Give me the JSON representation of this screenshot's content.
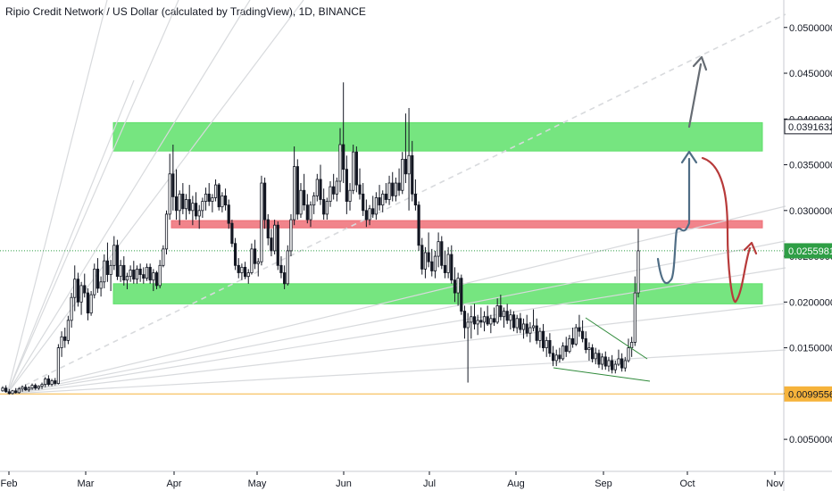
{
  "title": "Ripio Credit Network / US Dollar (calculated by TradingView), 1D, BINANCE",
  "colors": {
    "up": "#131722",
    "zone_green": "#5ee06a",
    "zone_red": "#ef6f77",
    "support_line": "#f6b33b",
    "current_line": "#2e9e45",
    "path_blue": "#4f6d85",
    "path_red": "#b73a3a",
    "path_grey": "#666c73",
    "fan": "#d8dadd",
    "wedge": "#2f8a3a"
  },
  "chart_data": {
    "type": "candlestick",
    "pair": "RCN/USD",
    "interval": "1D",
    "exchange": "BINANCE",
    "x_labels": [
      "Feb",
      "Mar",
      "Apr",
      "May",
      "Jun",
      "Jul",
      "Aug",
      "Sep",
      "Oct",
      "Nov"
    ],
    "y_labels": [
      "0.0500000",
      "0.0450000",
      "0.0400000",
      "0.0350000",
      "0.0300000",
      "0.0250000",
      "0.0200000",
      "0.0150000",
      "0.0100000",
      "0.0050000"
    ],
    "ylim": [
      0.0015,
      0.053
    ],
    "price_tags": [
      {
        "label": "0.0391632",
        "value": 0.0391632,
        "style": "dark"
      },
      {
        "label": "0.0255981",
        "value": 0.0255981,
        "style": "green"
      },
      {
        "label": "0.0099556",
        "value": 0.0099556,
        "style": "orange"
      }
    ],
    "zones": [
      {
        "kind": "resistance",
        "color": "green",
        "from": 0.0365,
        "to": 0.0396,
        "start": "Feb 11",
        "end": "Oct 28"
      },
      {
        "kind": "pivot",
        "color": "red",
        "from": 0.0281,
        "to": 0.0289,
        "start": "Mar 29",
        "end": "Oct 28"
      },
      {
        "kind": "support",
        "color": "green",
        "from": 0.0198,
        "to": 0.022,
        "start": "Feb 11",
        "end": "Oct 28"
      }
    ],
    "support_line": 0.0099556,
    "last_price": 0.0255981,
    "candles": [
      [
        0.0103,
        0.0108,
        0.0102,
        0.0106
      ],
      [
        0.0106,
        0.0109,
        0.0101,
        0.0102
      ],
      [
        0.0102,
        0.0105,
        0.0099,
        0.01
      ],
      [
        0.01,
        0.0104,
        0.0099,
        0.0103
      ],
      [
        0.0103,
        0.0106,
        0.01,
        0.0101
      ],
      [
        0.0101,
        0.0107,
        0.01,
        0.0105
      ],
      [
        0.0105,
        0.0109,
        0.0102,
        0.0107
      ],
      [
        0.0107,
        0.011,
        0.0103,
        0.0104
      ],
      [
        0.0104,
        0.0108,
        0.0102,
        0.0106
      ],
      [
        0.0106,
        0.0111,
        0.0104,
        0.0109
      ],
      [
        0.0109,
        0.0111,
        0.0104,
        0.0106
      ],
      [
        0.0106,
        0.0109,
        0.0104,
        0.0108
      ],
      [
        0.0108,
        0.0112,
        0.0105,
        0.011
      ],
      [
        0.011,
        0.0118,
        0.0107,
        0.0116
      ],
      [
        0.0116,
        0.012,
        0.0108,
        0.011
      ],
      [
        0.011,
        0.0116,
        0.0108,
        0.0114
      ],
      [
        0.0114,
        0.0117,
        0.0109,
        0.0111
      ],
      [
        0.0111,
        0.0154,
        0.011,
        0.015
      ],
      [
        0.015,
        0.0168,
        0.014,
        0.0162
      ],
      [
        0.0162,
        0.0172,
        0.015,
        0.0158
      ],
      [
        0.0158,
        0.0185,
        0.0154,
        0.018
      ],
      [
        0.018,
        0.021,
        0.0172,
        0.0205
      ],
      [
        0.0205,
        0.024,
        0.019,
        0.0225
      ],
      [
        0.0225,
        0.0232,
        0.0195,
        0.02
      ],
      [
        0.02,
        0.0222,
        0.0186,
        0.0218
      ],
      [
        0.0218,
        0.0231,
        0.0205,
        0.021
      ],
      [
        0.021,
        0.0215,
        0.018,
        0.0188
      ],
      [
        0.0188,
        0.0212,
        0.0185,
        0.0208
      ],
      [
        0.0208,
        0.0242,
        0.0204,
        0.0236
      ],
      [
        0.0236,
        0.0248,
        0.021,
        0.0215
      ],
      [
        0.0215,
        0.0228,
        0.0206,
        0.0222
      ],
      [
        0.0222,
        0.0252,
        0.0215,
        0.0245
      ],
      [
        0.0245,
        0.0265,
        0.0222,
        0.023
      ],
      [
        0.023,
        0.0246,
        0.0212,
        0.024
      ],
      [
        0.024,
        0.0272,
        0.0235,
        0.0262
      ],
      [
        0.0262,
        0.0268,
        0.0224,
        0.0228
      ],
      [
        0.0228,
        0.0246,
        0.0222,
        0.024
      ],
      [
        0.024,
        0.025,
        0.0218,
        0.0224
      ],
      [
        0.0224,
        0.0232,
        0.0214,
        0.0228
      ],
      [
        0.0228,
        0.024,
        0.0222,
        0.0235
      ],
      [
        0.0235,
        0.0245,
        0.022,
        0.0225
      ],
      [
        0.0225,
        0.024,
        0.022,
        0.0236
      ],
      [
        0.0236,
        0.0242,
        0.0222,
        0.023
      ],
      [
        0.023,
        0.0238,
        0.022,
        0.0226
      ],
      [
        0.0226,
        0.0242,
        0.0223,
        0.0238
      ],
      [
        0.0238,
        0.0242,
        0.022,
        0.0224
      ],
      [
        0.0224,
        0.0236,
        0.0212,
        0.0232
      ],
      [
        0.0232,
        0.0234,
        0.0214,
        0.0218
      ],
      [
        0.0218,
        0.0246,
        0.0215,
        0.024
      ],
      [
        0.024,
        0.0262,
        0.0238,
        0.0258
      ],
      [
        0.0258,
        0.03,
        0.0252,
        0.0296
      ],
      [
        0.0296,
        0.0362,
        0.029,
        0.034
      ],
      [
        0.034,
        0.0372,
        0.03,
        0.0315
      ],
      [
        0.0315,
        0.0345,
        0.029,
        0.03
      ],
      [
        0.03,
        0.0322,
        0.0284,
        0.0318
      ],
      [
        0.0318,
        0.033,
        0.0296,
        0.0302
      ],
      [
        0.0302,
        0.0318,
        0.029,
        0.0312
      ],
      [
        0.0312,
        0.0328,
        0.0296,
        0.03
      ],
      [
        0.03,
        0.0316,
        0.0284,
        0.0308
      ],
      [
        0.0308,
        0.032,
        0.029,
        0.0294
      ],
      [
        0.0294,
        0.0306,
        0.028,
        0.03
      ],
      [
        0.03,
        0.0314,
        0.0292,
        0.031
      ],
      [
        0.031,
        0.0325,
        0.03,
        0.0318
      ],
      [
        0.0318,
        0.033,
        0.0305,
        0.031
      ],
      [
        0.031,
        0.0318,
        0.0298,
        0.0314
      ],
      [
        0.0314,
        0.0334,
        0.031,
        0.0328
      ],
      [
        0.0328,
        0.033,
        0.03,
        0.0304
      ],
      [
        0.0304,
        0.032,
        0.0298,
        0.0316
      ],
      [
        0.0316,
        0.0324,
        0.03,
        0.0306
      ],
      [
        0.0306,
        0.0312,
        0.028,
        0.0286
      ],
      [
        0.0286,
        0.029,
        0.026,
        0.0264
      ],
      [
        0.0264,
        0.027,
        0.0235,
        0.024
      ],
      [
        0.024,
        0.0248,
        0.0226,
        0.0232
      ],
      [
        0.0232,
        0.0242,
        0.0224,
        0.0238
      ],
      [
        0.0238,
        0.0244,
        0.0225,
        0.0228
      ],
      [
        0.0228,
        0.0236,
        0.022,
        0.0232
      ],
      [
        0.0232,
        0.0264,
        0.023,
        0.0258
      ],
      [
        0.0258,
        0.0268,
        0.0236,
        0.0242
      ],
      [
        0.0242,
        0.0248,
        0.0228,
        0.0244
      ],
      [
        0.0244,
        0.0338,
        0.024,
        0.033
      ],
      [
        0.033,
        0.0336,
        0.028,
        0.029
      ],
      [
        0.029,
        0.0296,
        0.0262,
        0.027
      ],
      [
        0.027,
        0.028,
        0.025,
        0.0256
      ],
      [
        0.0256,
        0.029,
        0.0252,
        0.0284
      ],
      [
        0.0284,
        0.0288,
        0.0235,
        0.024
      ],
      [
        0.024,
        0.025,
        0.0226,
        0.0232
      ],
      [
        0.0232,
        0.024,
        0.0214,
        0.022
      ],
      [
        0.022,
        0.0262,
        0.0218,
        0.0256
      ],
      [
        0.0256,
        0.0296,
        0.025,
        0.029
      ],
      [
        0.029,
        0.037,
        0.0284,
        0.0348
      ],
      [
        0.0348,
        0.0356,
        0.029,
        0.0296
      ],
      [
        0.0296,
        0.033,
        0.0292,
        0.0322
      ],
      [
        0.0322,
        0.034,
        0.03,
        0.0306
      ],
      [
        0.0306,
        0.0318,
        0.0286,
        0.029
      ],
      [
        0.029,
        0.031,
        0.0282,
        0.0306
      ],
      [
        0.0306,
        0.032,
        0.0296,
        0.0316
      ],
      [
        0.0316,
        0.034,
        0.031,
        0.0334
      ],
      [
        0.0334,
        0.035,
        0.0306,
        0.0312
      ],
      [
        0.0312,
        0.0324,
        0.029,
        0.0296
      ],
      [
        0.0296,
        0.0314,
        0.029,
        0.031
      ],
      [
        0.031,
        0.0332,
        0.0304,
        0.0326
      ],
      [
        0.0326,
        0.034,
        0.0312,
        0.0318
      ],
      [
        0.0318,
        0.0336,
        0.031,
        0.0332
      ],
      [
        0.0332,
        0.039,
        0.032,
        0.0372
      ],
      [
        0.0372,
        0.044,
        0.033,
        0.0345
      ],
      [
        0.0345,
        0.036,
        0.0296,
        0.031
      ],
      [
        0.031,
        0.033,
        0.03,
        0.0322
      ],
      [
        0.0322,
        0.0372,
        0.0318,
        0.0364
      ],
      [
        0.0364,
        0.037,
        0.032,
        0.0328
      ],
      [
        0.0328,
        0.0346,
        0.0312,
        0.0318
      ],
      [
        0.0318,
        0.033,
        0.0294,
        0.03
      ],
      [
        0.03,
        0.0312,
        0.0282,
        0.029
      ],
      [
        0.029,
        0.0306,
        0.0284,
        0.0302
      ],
      [
        0.0302,
        0.0316,
        0.0292,
        0.0296
      ],
      [
        0.0296,
        0.032,
        0.029,
        0.0314
      ],
      [
        0.0314,
        0.0328,
        0.03,
        0.0306
      ],
      [
        0.0306,
        0.0322,
        0.0298,
        0.0318
      ],
      [
        0.0318,
        0.033,
        0.0308,
        0.0312
      ],
      [
        0.0312,
        0.0338,
        0.0306,
        0.033
      ],
      [
        0.033,
        0.0342,
        0.031,
        0.0316
      ],
      [
        0.0316,
        0.0336,
        0.031,
        0.033
      ],
      [
        0.033,
        0.0346,
        0.0316,
        0.0322
      ],
      [
        0.0322,
        0.0364,
        0.0318,
        0.0356
      ],
      [
        0.0356,
        0.0406,
        0.033,
        0.034
      ],
      [
        0.034,
        0.0412,
        0.03,
        0.036
      ],
      [
        0.036,
        0.0376,
        0.031,
        0.0318
      ],
      [
        0.0318,
        0.0334,
        0.03,
        0.0306
      ],
      [
        0.0306,
        0.031,
        0.0256,
        0.0262
      ],
      [
        0.0262,
        0.027,
        0.023,
        0.0236
      ],
      [
        0.0236,
        0.026,
        0.0226,
        0.0254
      ],
      [
        0.0254,
        0.0276,
        0.0238,
        0.0244
      ],
      [
        0.0244,
        0.0258,
        0.0228,
        0.0234
      ],
      [
        0.0234,
        0.0256,
        0.0226,
        0.025
      ],
      [
        0.025,
        0.0276,
        0.0238,
        0.0266
      ],
      [
        0.0266,
        0.0272,
        0.0236,
        0.024
      ],
      [
        0.024,
        0.0256,
        0.0226,
        0.0232
      ],
      [
        0.0232,
        0.026,
        0.0226,
        0.0252
      ],
      [
        0.0252,
        0.0262,
        0.022,
        0.0224
      ],
      [
        0.0224,
        0.0238,
        0.02,
        0.021
      ],
      [
        0.021,
        0.0232,
        0.0196,
        0.0226
      ],
      [
        0.0226,
        0.023,
        0.0186,
        0.019
      ],
      [
        0.019,
        0.0196,
        0.016,
        0.0172
      ],
      [
        0.0172,
        0.0188,
        0.0112,
        0.0178
      ],
      [
        0.0178,
        0.0196,
        0.016,
        0.0184
      ],
      [
        0.0184,
        0.0198,
        0.017,
        0.0176
      ],
      [
        0.0176,
        0.0186,
        0.0164,
        0.018
      ],
      [
        0.018,
        0.0194,
        0.0172,
        0.0178
      ],
      [
        0.0178,
        0.019,
        0.0168,
        0.0184
      ],
      [
        0.0184,
        0.0196,
        0.0174,
        0.0176
      ],
      [
        0.0176,
        0.0186,
        0.0166,
        0.0182
      ],
      [
        0.0182,
        0.0194,
        0.0174,
        0.0178
      ],
      [
        0.0178,
        0.0204,
        0.0176,
        0.0196
      ],
      [
        0.0196,
        0.0208,
        0.018,
        0.0184
      ],
      [
        0.0184,
        0.0194,
        0.0172,
        0.019
      ],
      [
        0.019,
        0.0198,
        0.0176,
        0.018
      ],
      [
        0.018,
        0.0192,
        0.017,
        0.0186
      ],
      [
        0.0186,
        0.019,
        0.0168,
        0.0172
      ],
      [
        0.0172,
        0.0186,
        0.0166,
        0.0182
      ],
      [
        0.0182,
        0.0188,
        0.0166,
        0.017
      ],
      [
        0.017,
        0.0182,
        0.016,
        0.0176
      ],
      [
        0.0176,
        0.0186,
        0.0162,
        0.0166
      ],
      [
        0.0166,
        0.0178,
        0.0156,
        0.0172
      ],
      [
        0.0172,
        0.0192,
        0.0168,
        0.0174
      ],
      [
        0.0174,
        0.0182,
        0.0154,
        0.0158
      ],
      [
        0.0158,
        0.0172,
        0.015,
        0.0168
      ],
      [
        0.0168,
        0.0176,
        0.0146,
        0.015
      ],
      [
        0.015,
        0.0162,
        0.014,
        0.0158
      ],
      [
        0.0158,
        0.0166,
        0.014,
        0.0144
      ],
      [
        0.0144,
        0.0152,
        0.013,
        0.0136
      ],
      [
        0.0136,
        0.0148,
        0.013,
        0.0142
      ],
      [
        0.0142,
        0.015,
        0.0134,
        0.0138
      ],
      [
        0.0138,
        0.0156,
        0.0136,
        0.0152
      ],
      [
        0.0152,
        0.0162,
        0.014,
        0.0146
      ],
      [
        0.0146,
        0.0164,
        0.0144,
        0.016
      ],
      [
        0.016,
        0.0172,
        0.015,
        0.0154
      ],
      [
        0.0154,
        0.0176,
        0.0152,
        0.0172
      ],
      [
        0.0172,
        0.0186,
        0.0162,
        0.0168
      ],
      [
        0.0168,
        0.018,
        0.0156,
        0.016
      ],
      [
        0.016,
        0.0168,
        0.0144,
        0.0148
      ],
      [
        0.0148,
        0.0156,
        0.0136,
        0.015
      ],
      [
        0.015,
        0.0154,
        0.0134,
        0.0138
      ],
      [
        0.0138,
        0.015,
        0.0132,
        0.0144
      ],
      [
        0.0144,
        0.0148,
        0.0128,
        0.0132
      ],
      [
        0.0132,
        0.0144,
        0.0126,
        0.014
      ],
      [
        0.014,
        0.0146,
        0.0126,
        0.013
      ],
      [
        0.013,
        0.014,
        0.0124,
        0.0136
      ],
      [
        0.0136,
        0.0142,
        0.0122,
        0.0126
      ],
      [
        0.0126,
        0.0136,
        0.0122,
        0.0132
      ],
      [
        0.0132,
        0.0148,
        0.013,
        0.0138
      ],
      [
        0.0138,
        0.0144,
        0.0124,
        0.0128
      ],
      [
        0.0128,
        0.014,
        0.0124,
        0.0136
      ],
      [
        0.0136,
        0.016,
        0.0134,
        0.015
      ],
      [
        0.015,
        0.0162,
        0.014,
        0.0156
      ],
      [
        0.0156,
        0.0228,
        0.0152,
        0.021
      ],
      [
        0.021,
        0.028,
        0.0205,
        0.0256
      ]
    ],
    "annotations": [
      {
        "type": "fan_lines",
        "origin_date": "Feb 1",
        "origin_price": 0.0099556
      },
      {
        "type": "trend_line_dashed",
        "direction": "up",
        "style": "dashed"
      },
      {
        "type": "falling_wedge",
        "color": "green",
        "period": "Aug–Sep"
      },
      {
        "type": "projection_path",
        "color": "blue",
        "description": "retest of support zone then rally into upper green zone"
      },
      {
        "type": "projection_arrow",
        "color": "grey",
        "description": "breakout above upper zone toward 0.0450000+"
      },
      {
        "type": "projection_path",
        "color": "red",
        "description": "rejection from upper zone, drop to lower zone, bounce"
      }
    ]
  }
}
